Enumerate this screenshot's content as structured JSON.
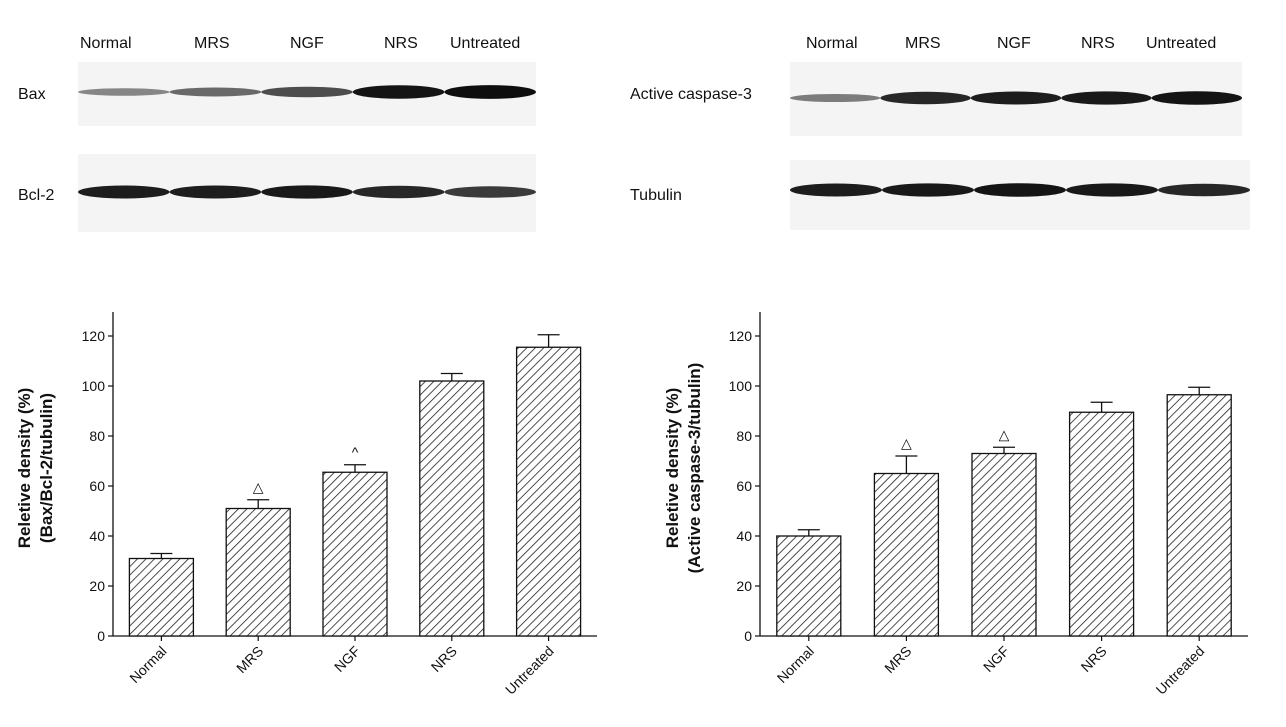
{
  "blots": {
    "left": {
      "lanes": [
        "Normal",
        "MRS",
        "NGF",
        "NRS",
        "Untreated"
      ],
      "rows": [
        {
          "label": "Bax",
          "intensities": [
            0.35,
            0.5,
            0.65,
            0.95,
            0.98
          ]
        },
        {
          "label": "Bcl-2",
          "intensities": [
            0.9,
            0.9,
            0.92,
            0.85,
            0.75
          ]
        }
      ]
    },
    "right": {
      "lanes": [
        "Normal",
        "MRS",
        "NGF",
        "NRS",
        "Untreated"
      ],
      "rows": [
        {
          "label": "Active caspase-3",
          "intensities": [
            0.4,
            0.85,
            0.9,
            0.92,
            0.95
          ]
        },
        {
          "label": "Tubulin",
          "intensities": [
            0.9,
            0.92,
            0.95,
            0.92,
            0.85
          ]
        }
      ]
    }
  },
  "chart_data": [
    {
      "type": "bar",
      "categories": [
        "Normal",
        "MRS",
        "NGF",
        "NRS",
        "Untreated"
      ],
      "values": [
        31,
        51,
        65.5,
        102,
        115.5
      ],
      "errors": [
        2,
        3.5,
        3,
        3,
        5
      ],
      "markers": [
        "",
        "△",
        "^",
        "",
        ""
      ],
      "ylabel_line1": "Reletive density (%)",
      "ylabel_line2": "(Bax/Bcl-2/tubulin)",
      "ylim": [
        0,
        120
      ],
      "yticks": [
        0,
        20,
        40,
        60,
        80,
        100,
        120
      ],
      "fill": "diagonal hatch",
      "grid": false
    },
    {
      "type": "bar",
      "categories": [
        "Normal",
        "MRS",
        "NGF",
        "NRS",
        "Untreated"
      ],
      "values": [
        40,
        65,
        73,
        89.5,
        96.5
      ],
      "errors": [
        2.5,
        7,
        2.5,
        4,
        3
      ],
      "markers": [
        "",
        "△",
        "△",
        "",
        ""
      ],
      "ylabel_line1": "Reletive density (%)",
      "ylabel_line2": "(Active caspase-3/tubulin)",
      "ylim": [
        0,
        120
      ],
      "yticks": [
        0,
        20,
        40,
        60,
        80,
        100,
        120
      ],
      "fill": "diagonal hatch",
      "grid": false
    }
  ]
}
